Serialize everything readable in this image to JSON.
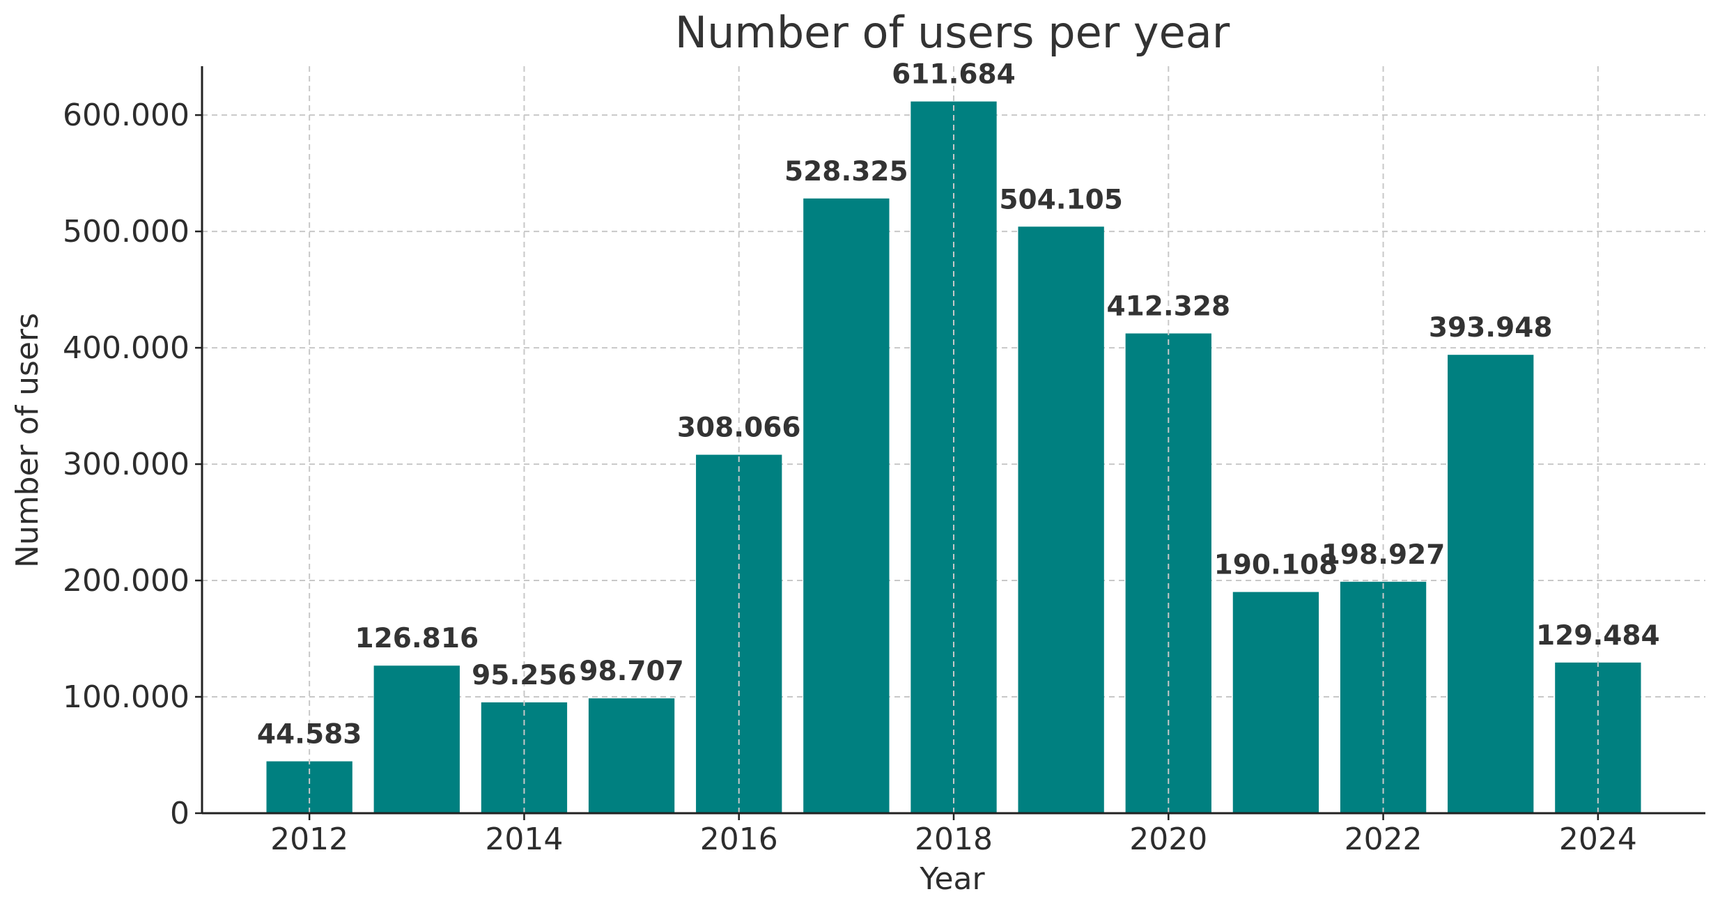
{
  "chart_data": {
    "type": "bar",
    "title": "Number of users per year",
    "xlabel": "Year",
    "ylabel": "Number of users",
    "categories": [
      2012,
      2013,
      2014,
      2015,
      2016,
      2017,
      2018,
      2019,
      2020,
      2021,
      2022,
      2023,
      2024
    ],
    "values": [
      44583,
      126816,
      95256,
      98707,
      308066,
      528325,
      611684,
      504105,
      412328,
      190108,
      198927,
      393948,
      129484
    ],
    "data_labels": [
      "44.583",
      "126.816",
      "95.256",
      "98.707",
      "308.066",
      "528.325",
      "611.684",
      "504.105",
      "412.328",
      "190.108",
      "198.927",
      "393.948",
      "129.484"
    ],
    "x_ticks": [
      2012,
      2014,
      2016,
      2018,
      2020,
      2022,
      2024
    ],
    "x_tick_labels": [
      "2012",
      "2014",
      "2016",
      "2018",
      "2020",
      "2022",
      "2024"
    ],
    "y_ticks": [
      0,
      100000,
      200000,
      300000,
      400000,
      500000,
      600000
    ],
    "y_tick_labels": [
      "0",
      "100.000",
      "200.000",
      "300.000",
      "400.000",
      "500.000",
      "600.000"
    ],
    "xlim": [
      2011,
      2025
    ],
    "ylim": [
      0,
      642000
    ],
    "grid": true,
    "bar_color": "#008080",
    "text_color": "#333333"
  }
}
